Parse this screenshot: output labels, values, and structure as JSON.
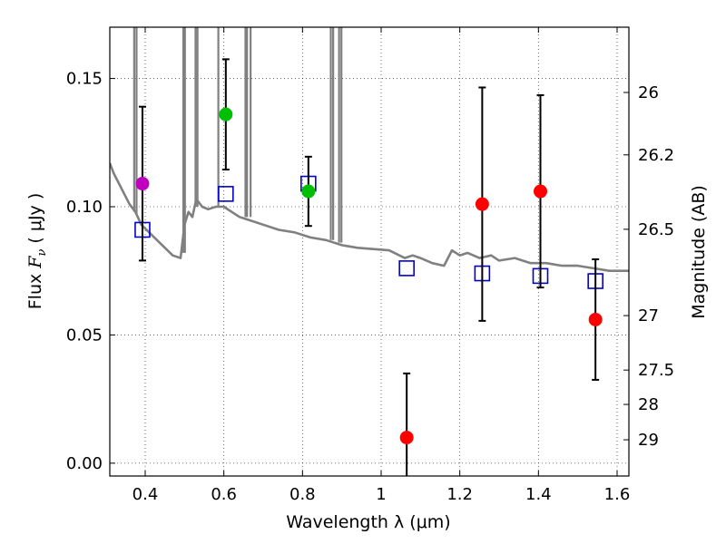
{
  "chart_data": {
    "type": "scatter",
    "title": "",
    "xlabel": "Wavelength  λ (μm)",
    "ylabel_prefix": "Flux  ",
    "ylabel_symbol": "F",
    "ylabel_subscript": "ν",
    "ylabel_suffix": "  ( μJy )",
    "ylabel_right": "Magnitude (AB)",
    "xlim": [
      0.31,
      1.63
    ],
    "ylim": [
      -0.005,
      0.17
    ],
    "x_ticks": [
      {
        "value": 0.4,
        "label": "0.4"
      },
      {
        "value": 0.6,
        "label": "0.6"
      },
      {
        "value": 0.8,
        "label": "0.8"
      },
      {
        "value": 1.0,
        "label": "1"
      },
      {
        "value": 1.2,
        "label": "1.2"
      },
      {
        "value": 1.4,
        "label": "1.4"
      },
      {
        "value": 1.6,
        "label": "1.6"
      }
    ],
    "y_ticks": [
      {
        "value": 0.0,
        "label": "0.00"
      },
      {
        "value": 0.05,
        "label": "0.05"
      },
      {
        "value": 0.1,
        "label": "0.10"
      },
      {
        "value": 0.15,
        "label": "0.15"
      }
    ],
    "mag_ticks": [
      {
        "value": 26,
        "label": "26"
      },
      {
        "value": 26.2,
        "label": "26.2"
      },
      {
        "value": 26.5,
        "label": "26.5"
      },
      {
        "value": 27,
        "label": "27"
      },
      {
        "value": 27.5,
        "label": "27.5"
      },
      {
        "value": 28,
        "label": "28"
      },
      {
        "value": 29,
        "label": "29"
      }
    ],
    "grid": true,
    "colors": {
      "model": "#808080",
      "magenta": "#bf00bf",
      "green": "#00bf00",
      "red": "#ff0000",
      "blue": "#0000cc",
      "errorbar": "#000000"
    },
    "series": [
      {
        "name": "model-sed",
        "kind": "line",
        "color_key": "model",
        "points": [
          [
            0.31,
            0.117
          ],
          [
            0.32,
            0.113
          ],
          [
            0.34,
            0.107
          ],
          [
            0.36,
            0.101
          ],
          [
            0.375,
            0.098
          ],
          [
            0.39,
            0.093
          ],
          [
            0.41,
            0.09
          ],
          [
            0.43,
            0.087
          ],
          [
            0.45,
            0.084
          ],
          [
            0.47,
            0.081
          ],
          [
            0.49,
            0.08
          ],
          [
            0.5,
            0.093
          ],
          [
            0.51,
            0.098
          ],
          [
            0.52,
            0.096
          ],
          [
            0.53,
            0.103
          ],
          [
            0.545,
            0.1
          ],
          [
            0.56,
            0.099
          ],
          [
            0.58,
            0.1
          ],
          [
            0.6,
            0.1
          ],
          [
            0.62,
            0.098
          ],
          [
            0.64,
            0.096
          ],
          [
            0.66,
            0.095
          ],
          [
            0.7,
            0.093
          ],
          [
            0.74,
            0.091
          ],
          [
            0.78,
            0.09
          ],
          [
            0.82,
            0.088
          ],
          [
            0.86,
            0.087
          ],
          [
            0.9,
            0.085
          ],
          [
            0.94,
            0.084
          ],
          [
            0.98,
            0.0835
          ],
          [
            1.02,
            0.083
          ],
          [
            1.06,
            0.08
          ],
          [
            1.08,
            0.081
          ],
          [
            1.1,
            0.08
          ],
          [
            1.13,
            0.078
          ],
          [
            1.16,
            0.077
          ],
          [
            1.18,
            0.083
          ],
          [
            1.2,
            0.081
          ],
          [
            1.22,
            0.082
          ],
          [
            1.25,
            0.08
          ],
          [
            1.28,
            0.081
          ],
          [
            1.3,
            0.079
          ],
          [
            1.34,
            0.08
          ],
          [
            1.38,
            0.078
          ],
          [
            1.42,
            0.078
          ],
          [
            1.46,
            0.077
          ],
          [
            1.5,
            0.077
          ],
          [
            1.54,
            0.076
          ],
          [
            1.58,
            0.075
          ],
          [
            1.63,
            0.075
          ]
        ]
      },
      {
        "name": "emission-lines",
        "kind": "spikes",
        "color_key": "model",
        "points": [
          [
            0.372,
            0.098
          ],
          [
            0.378,
            0.097
          ],
          [
            0.497,
            0.082
          ],
          [
            0.501,
            0.082
          ],
          [
            0.528,
            0.1
          ],
          [
            0.533,
            0.1
          ],
          [
            0.586,
            0.1
          ],
          [
            0.655,
            0.096
          ],
          [
            0.659,
            0.096
          ],
          [
            0.668,
            0.096
          ],
          [
            0.872,
            0.087
          ],
          [
            0.878,
            0.087
          ],
          [
            0.893,
            0.086
          ],
          [
            0.899,
            0.086
          ]
        ]
      },
      {
        "name": "model-photometry",
        "kind": "open-squares",
        "color_key": "blue",
        "points": [
          [
            0.393,
            0.091
          ],
          [
            0.605,
            0.105
          ],
          [
            0.815,
            0.109
          ],
          [
            1.065,
            0.076
          ],
          [
            1.257,
            0.074
          ],
          [
            1.405,
            0.073
          ],
          [
            1.545,
            0.071
          ]
        ]
      },
      {
        "name": "observed-photometry",
        "kind": "points-with-errors",
        "points": [
          {
            "x": 0.393,
            "y": 0.109,
            "yerr": 0.03,
            "color_key": "magenta"
          },
          {
            "x": 0.605,
            "y": 0.136,
            "yerr": 0.0215,
            "color_key": "green"
          },
          {
            "x": 0.815,
            "y": 0.106,
            "yerr": 0.0135,
            "color_key": "green"
          },
          {
            "x": 1.065,
            "y": 0.01,
            "yerr": 0.025,
            "color_key": "red"
          },
          {
            "x": 1.257,
            "y": 0.101,
            "yerr": 0.0455,
            "color_key": "red"
          },
          {
            "x": 1.405,
            "y": 0.106,
            "yerr": 0.0375,
            "color_key": "red"
          },
          {
            "x": 1.545,
            "y": 0.056,
            "yerr": 0.0235,
            "color_key": "red"
          }
        ]
      }
    ]
  }
}
